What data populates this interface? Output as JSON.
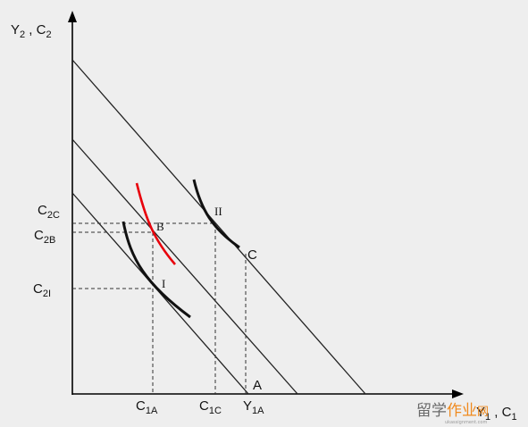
{
  "axes": {
    "y_label_main": "Y",
    "y_label_sub1": "2",
    "y_label_sep": " , C",
    "y_label_sub2": "2",
    "x_label_main": "Y",
    "x_label_sub1": "1",
    "x_label_sep": " , C",
    "x_label_sub2": "1"
  },
  "y_ticks": [
    {
      "main": "C",
      "sub": "2C"
    },
    {
      "main": "C",
      "sub": "2B"
    },
    {
      "main": "C",
      "sub": "2I"
    }
  ],
  "x_ticks": [
    {
      "main": "C",
      "sub": "1A"
    },
    {
      "main": "C",
      "sub": "1C"
    },
    {
      "main": "Y",
      "sub": "1A"
    }
  ],
  "points": {
    "A": "A",
    "B": "B",
    "C": "C",
    "I": "I",
    "II": "II"
  },
  "colors": {
    "axis": "#000000",
    "budget": "#222222",
    "curve": "#111111",
    "red_curve": "#e8000b",
    "watermark_gray": "#6a6a6a",
    "watermark_orange": "#f08a1d"
  },
  "watermark": {
    "part1": "留学",
    "part2": "作业",
    "part3": "网",
    "small": "ukassignment.com"
  }
}
